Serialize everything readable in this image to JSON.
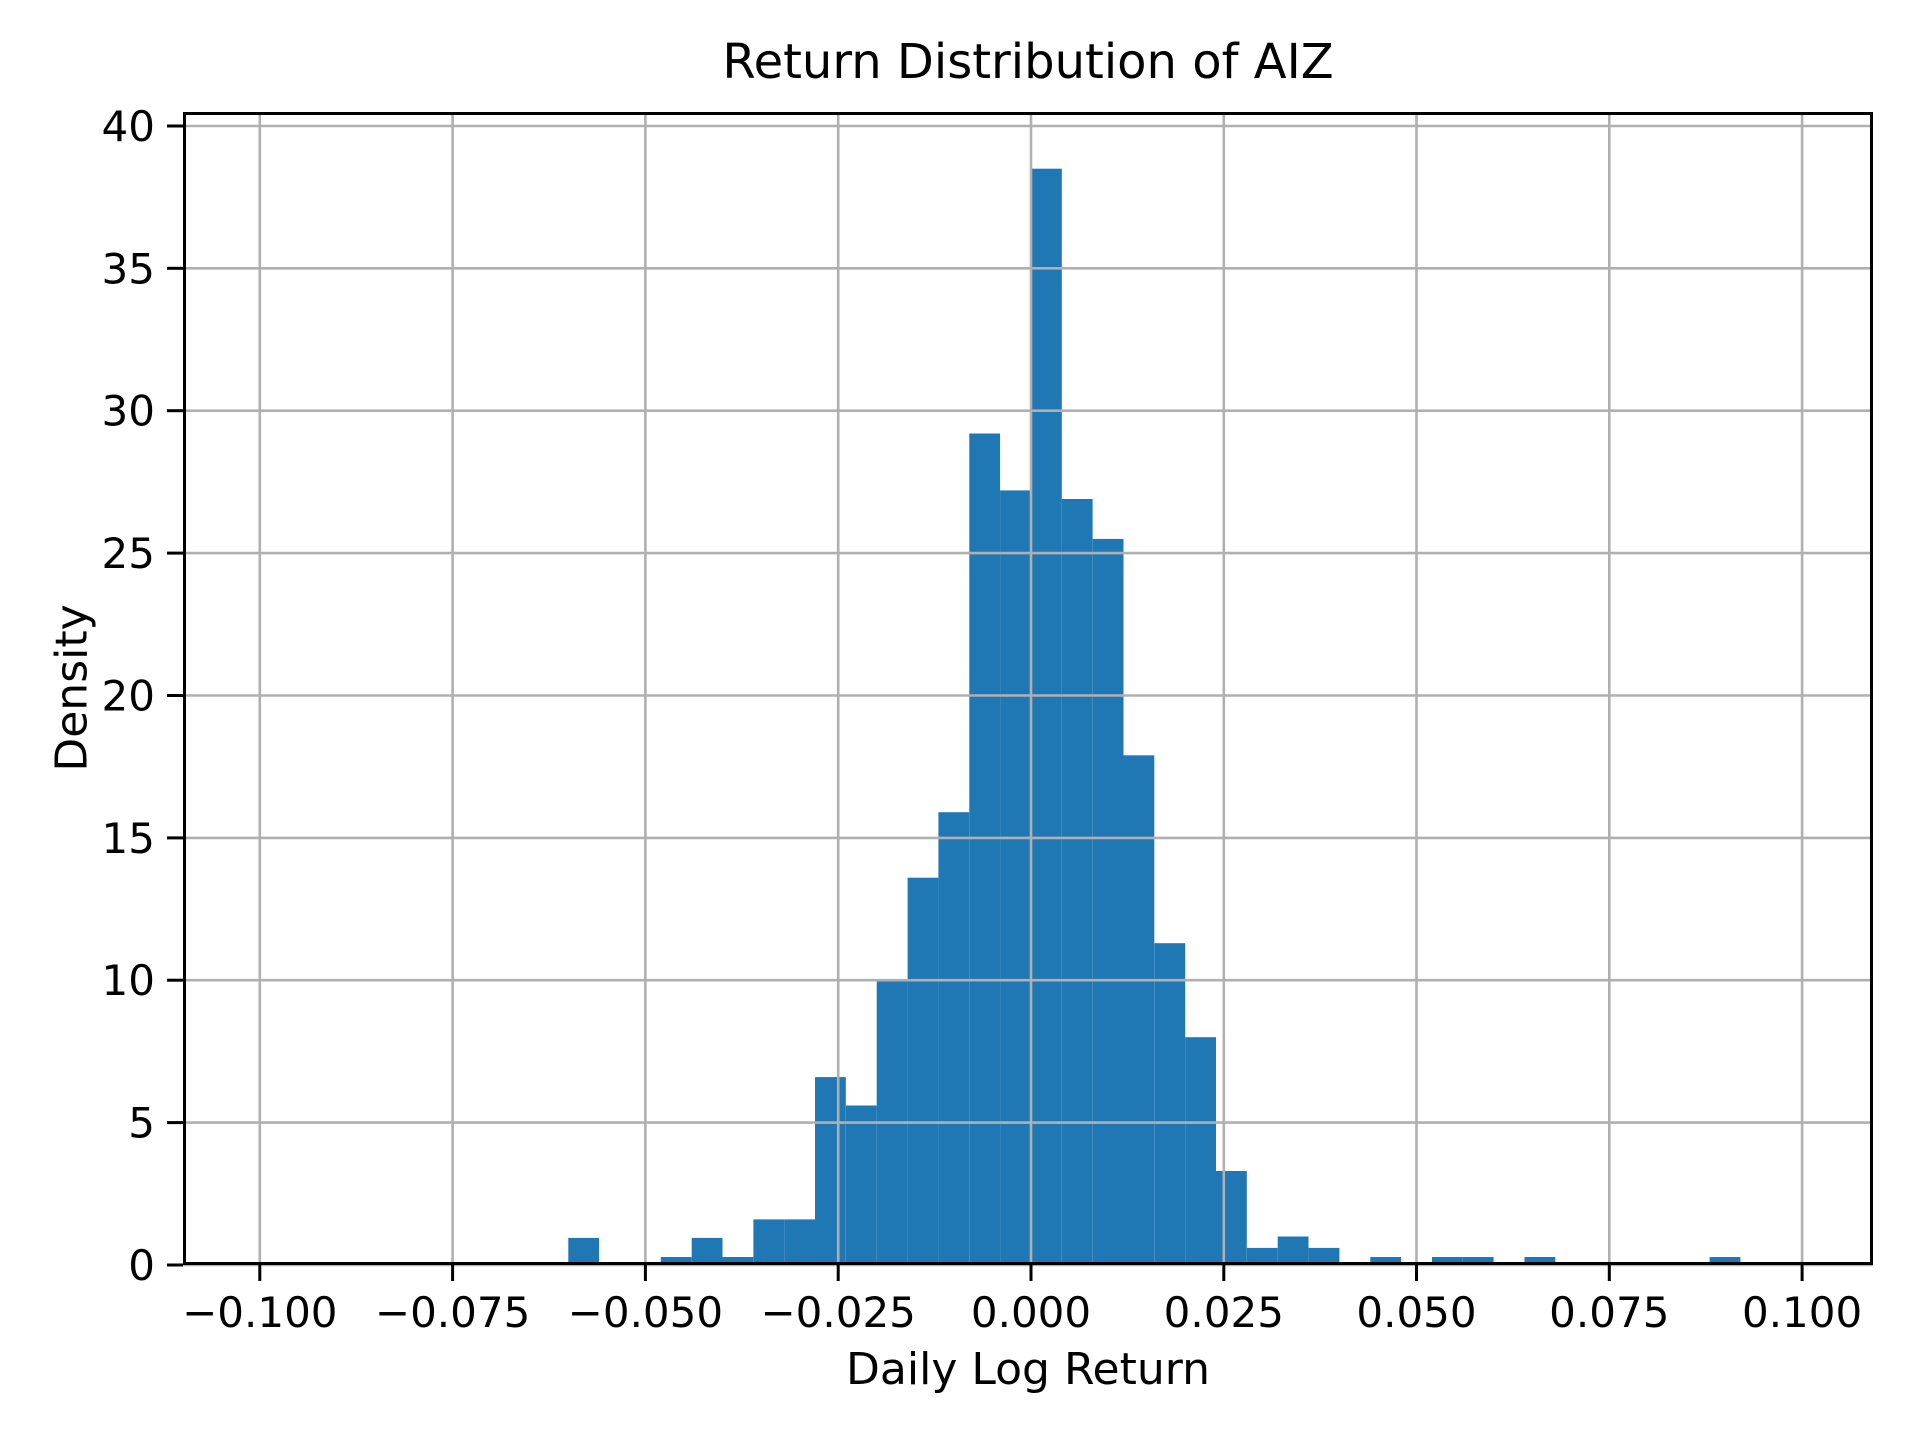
{
  "chart_data": {
    "type": "bar",
    "subtype": "histogram",
    "title": "Return Distribution of AIZ",
    "xlabel": "Daily Log Return",
    "ylabel": "Density",
    "bar_color": "#1f77b4",
    "grid_color": "#b0b0b0",
    "spine_color": "#000000",
    "grid": true,
    "grid_above_bars": true,
    "legend": "none",
    "bin_start": -0.06,
    "bin_width": 0.004,
    "densities": [
      0.95,
      0,
      0,
      0.28,
      0.95,
      0.28,
      1.6,
      1.6,
      6.6,
      5.6,
      10.0,
      13.6,
      15.9,
      29.2,
      27.2,
      38.5,
      26.9,
      25.5,
      17.9,
      11.3,
      8.0,
      3.3,
      0.6,
      1.0,
      0.6,
      0,
      0.28,
      0,
      0.28,
      0.28,
      0,
      0.28,
      0,
      0,
      0,
      0,
      0,
      0.28
    ],
    "x_ticks": [
      -0.1,
      -0.075,
      -0.05,
      -0.025,
      0.0,
      0.025,
      0.05,
      0.075,
      0.1
    ],
    "x_tick_labels": [
      "−0.100",
      "−0.075",
      "−0.050",
      "−0.025",
      "0.000",
      "0.025",
      "0.050",
      "0.075",
      "0.100"
    ],
    "y_ticks": [
      0,
      5,
      10,
      15,
      20,
      25,
      30,
      35,
      40
    ],
    "y_tick_labels": [
      "0",
      "5",
      "10",
      "15",
      "20",
      "25",
      "30",
      "35",
      "40"
    ],
    "xlim": [
      -0.10996,
      0.10919
    ],
    "ylim": [
      0,
      40.49
    ]
  }
}
